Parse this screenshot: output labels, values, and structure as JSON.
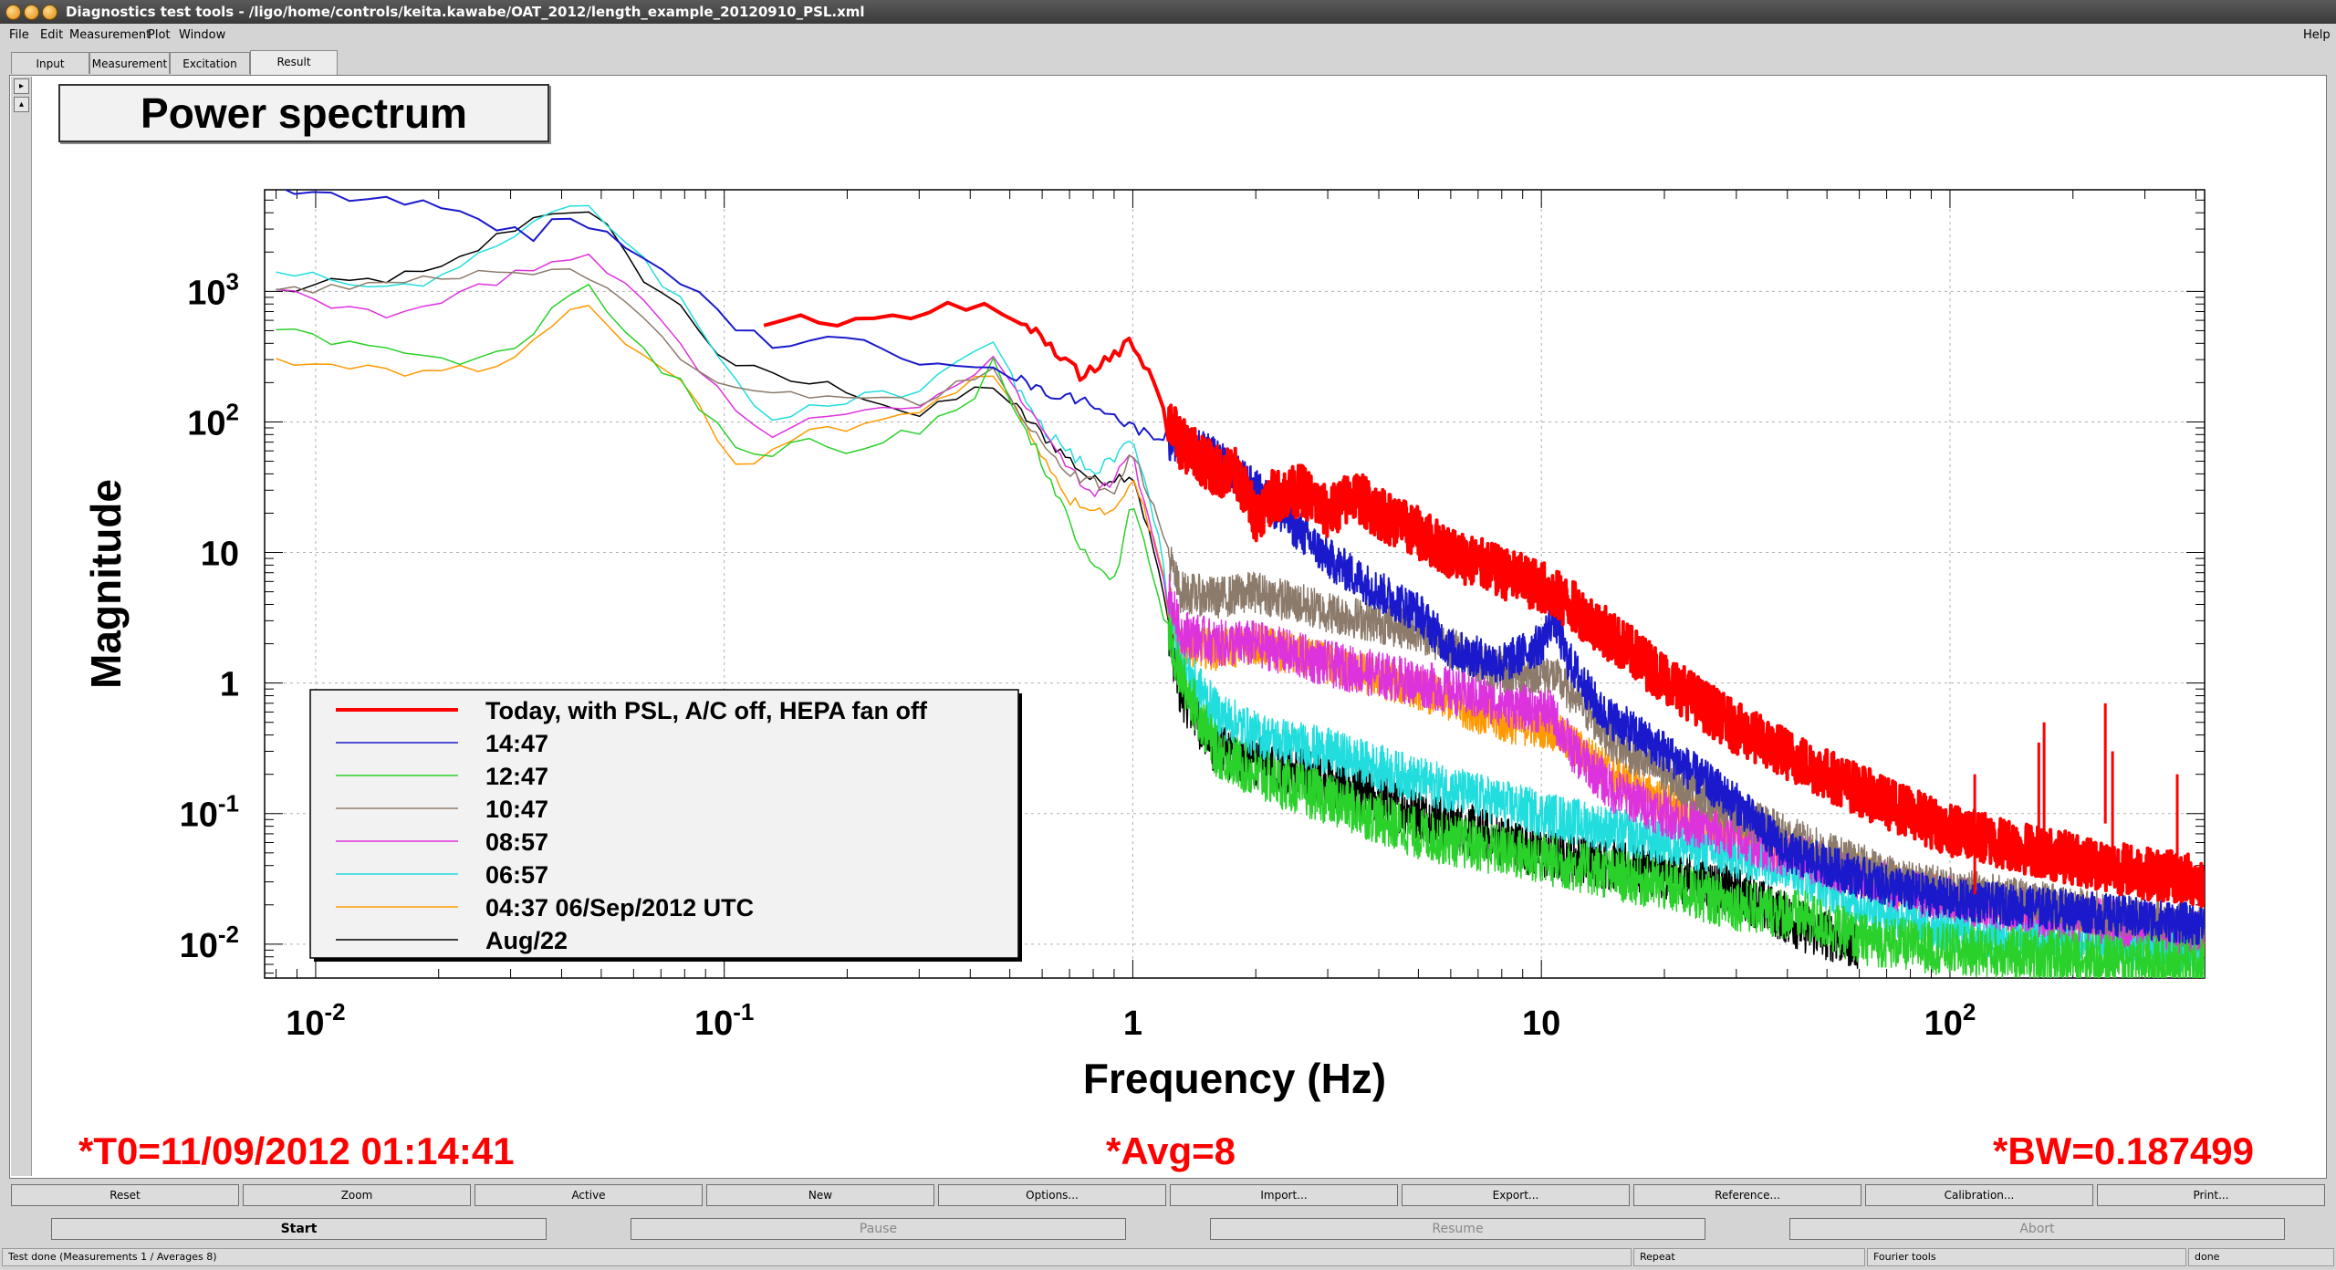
{
  "window": {
    "title": "Diagnostics test tools - /ligo/home/controls/keita.kawabe/OAT_2012/length_example_20120910_PSL.xml",
    "help_label": "Help"
  },
  "menu": {
    "items": [
      "File",
      "Edit",
      "Measurement",
      "Plot",
      "Window"
    ]
  },
  "tabs": [
    "Input",
    "Measurement",
    "Excitation",
    "Result"
  ],
  "active_tab": "Result",
  "plot_title": "Power spectrum",
  "status_overlay": {
    "t0": "*T0=11/09/2012 01:14:41",
    "avg": "*Avg=8",
    "bw": "*BW=0.187499"
  },
  "plot_buttons": [
    "Reset",
    "Zoom",
    "Active",
    "New",
    "Options...",
    "Import...",
    "Export...",
    "Reference...",
    "Calibration...",
    "Print..."
  ],
  "control_buttons": [
    "Start",
    "Pause",
    "Resume",
    "Abort"
  ],
  "statusbar": {
    "message": "Test done (Measurements 1 / Averages 8)",
    "repeat": "Repeat",
    "fourier": "Fourier tools",
    "state": "done"
  },
  "side_buttons": [
    "▸",
    "▴"
  ],
  "chart_data": {
    "type": "line",
    "title": "Power spectrum",
    "xlabel": "Frequency (Hz)",
    "ylabel": "Magnitude",
    "xscale": "log",
    "yscale": "log",
    "xlim": [
      0.0075,
      420
    ],
    "ylim": [
      0.0055,
      6000
    ],
    "grid": true,
    "legend_position": "bottom-left",
    "x_ticks": [
      {
        "value": 0.01,
        "base": "10",
        "exp": "-2"
      },
      {
        "value": 0.1,
        "base": "10",
        "exp": "-1"
      },
      {
        "value": 1,
        "base": "1",
        "exp": ""
      },
      {
        "value": 10,
        "base": "10",
        "exp": ""
      },
      {
        "value": 100,
        "base": "10",
        "exp": "2"
      }
    ],
    "y_ticks": [
      {
        "value": 0.01,
        "base": "10",
        "exp": "-2"
      },
      {
        "value": 0.1,
        "base": "10",
        "exp": "-1"
      },
      {
        "value": 1,
        "base": "1",
        "exp": ""
      },
      {
        "value": 10,
        "base": "10",
        "exp": ""
      },
      {
        "value": 100,
        "base": "10",
        "exp": "2"
      },
      {
        "value": 1000,
        "base": "10",
        "exp": "3"
      }
    ],
    "series": [
      {
        "name": "Today, with PSL, A/C off, HEPA fan off",
        "color": "#ff0000",
        "width": 4,
        "noise": 0.2,
        "points": [
          [
            0.125,
            590
          ],
          [
            0.25,
            610
          ],
          [
            0.38,
            760
          ],
          [
            0.5,
            730
          ],
          [
            0.6,
            420
          ],
          [
            0.75,
            220
          ],
          [
            0.95,
            380
          ],
          [
            1.0,
            400
          ],
          [
            1.1,
            240
          ],
          [
            1.3,
            70
          ],
          [
            1.6,
            42
          ],
          [
            1.8,
            40
          ],
          [
            2.0,
            19
          ],
          [
            2.2,
            27
          ],
          [
            2.6,
            30
          ],
          [
            3.0,
            20
          ],
          [
            3.5,
            28
          ],
          [
            4.0,
            20
          ],
          [
            5.0,
            14
          ],
          [
            6.0,
            10
          ],
          [
            8.0,
            7
          ],
          [
            10.0,
            5.5
          ],
          [
            12,
            3.8
          ],
          [
            15,
            2.2
          ],
          [
            20,
            1.1
          ],
          [
            30,
            0.45
          ],
          [
            50,
            0.2
          ],
          [
            70,
            0.12
          ],
          [
            100,
            0.075
          ],
          [
            150,
            0.055
          ],
          [
            200,
            0.045
          ],
          [
            300,
            0.035
          ],
          [
            420,
            0.03
          ]
        ],
        "spikes": [
          [
            170,
            0.5
          ],
          [
            165,
            0.35
          ],
          [
            240,
            0.7
          ],
          [
            115,
            0.2
          ],
          [
            360,
            0.2
          ],
          [
            250,
            0.3
          ]
        ]
      },
      {
        "name": "14:47",
        "color": "#1a1acc",
        "width": 2,
        "noise": 0.16,
        "points": [
          [
            0.008,
            6000
          ],
          [
            0.02,
            4500
          ],
          [
            0.035,
            2500
          ],
          [
            0.04,
            4000
          ],
          [
            0.05,
            3000
          ],
          [
            0.06,
            1800
          ],
          [
            0.08,
            1200
          ],
          [
            0.1,
            600
          ],
          [
            0.13,
            400
          ],
          [
            0.2,
            420
          ],
          [
            0.3,
            300
          ],
          [
            0.45,
            280
          ],
          [
            0.6,
            170
          ],
          [
            0.8,
            140
          ],
          [
            1.0,
            90
          ],
          [
            1.5,
            60
          ],
          [
            2.0,
            30
          ],
          [
            3.0,
            9
          ],
          [
            4.0,
            5
          ],
          [
            5.0,
            3.5
          ],
          [
            6.0,
            1.8
          ],
          [
            8.0,
            1.4
          ],
          [
            10.0,
            2.0
          ],
          [
            10.7,
            3.3
          ],
          [
            11.5,
            1.6
          ],
          [
            14,
            0.6
          ],
          [
            20,
            0.3
          ],
          [
            30,
            0.12
          ],
          [
            40,
            0.05
          ],
          [
            50,
            0.04
          ],
          [
            70,
            0.028
          ],
          [
            100,
            0.022
          ],
          [
            200,
            0.018
          ],
          [
            420,
            0.014
          ]
        ]
      },
      {
        "name": "12:47",
        "color": "#2ad12a",
        "width": 1.5,
        "noise": 0.2,
        "points": [
          [
            0.008,
            500
          ],
          [
            0.012,
            420
          ],
          [
            0.02,
            280
          ],
          [
            0.03,
            330
          ],
          [
            0.045,
            1300
          ],
          [
            0.06,
            400
          ],
          [
            0.08,
            180
          ],
          [
            0.1,
            80
          ],
          [
            0.12,
            50
          ],
          [
            0.16,
            70
          ],
          [
            0.2,
            60
          ],
          [
            0.3,
            90
          ],
          [
            0.4,
            120
          ],
          [
            0.45,
            300
          ],
          [
            0.5,
            150
          ],
          [
            0.6,
            50
          ],
          [
            0.75,
            10
          ],
          [
            0.9,
            6
          ],
          [
            1.0,
            25
          ],
          [
            1.1,
            8
          ],
          [
            1.3,
            1.2
          ],
          [
            1.6,
            0.3
          ],
          [
            2.0,
            0.2
          ],
          [
            3.0,
            0.13
          ],
          [
            5.0,
            0.07
          ],
          [
            10,
            0.045
          ],
          [
            20,
            0.028
          ],
          [
            30,
            0.02
          ],
          [
            45,
            0.016
          ],
          [
            60,
            0.011
          ],
          [
            100,
            0.009
          ],
          [
            200,
            0.008
          ],
          [
            420,
            0.007
          ]
        ]
      },
      {
        "name": "10:47",
        "color": "#8c7a6b",
        "width": 1.5,
        "noise": 0.16,
        "points": [
          [
            0.008,
            1000
          ],
          [
            0.02,
            1300
          ],
          [
            0.03,
            1500
          ],
          [
            0.045,
            1400
          ],
          [
            0.06,
            700
          ],
          [
            0.08,
            300
          ],
          [
            0.1,
            180
          ],
          [
            0.2,
            160
          ],
          [
            0.3,
            140
          ],
          [
            0.45,
            250
          ],
          [
            0.55,
            100
          ],
          [
            0.7,
            40
          ],
          [
            0.9,
            30
          ],
          [
            1.0,
            60
          ],
          [
            1.15,
            18
          ],
          [
            1.3,
            5
          ],
          [
            1.6,
            4.5
          ],
          [
            2.0,
            5
          ],
          [
            3.0,
            3.5
          ],
          [
            5.0,
            2.5
          ],
          [
            8.0,
            1.2
          ],
          [
            10.5,
            1.2
          ],
          [
            12,
            0.8
          ],
          [
            15,
            0.35
          ],
          [
            20,
            0.2
          ],
          [
            30,
            0.1
          ],
          [
            50,
            0.05
          ],
          [
            80,
            0.03
          ],
          [
            150,
            0.022
          ],
          [
            420,
            0.013
          ]
        ]
      },
      {
        "name": "08:57",
        "color": "#dd33dd",
        "width": 1.5,
        "noise": 0.18,
        "points": [
          [
            0.008,
            1100
          ],
          [
            0.015,
            600
          ],
          [
            0.02,
            800
          ],
          [
            0.03,
            1300
          ],
          [
            0.045,
            2000
          ],
          [
            0.06,
            1000
          ],
          [
            0.08,
            350
          ],
          [
            0.1,
            150
          ],
          [
            0.13,
            80
          ],
          [
            0.2,
            120
          ],
          [
            0.3,
            140
          ],
          [
            0.45,
            300
          ],
          [
            0.6,
            90
          ],
          [
            0.8,
            25
          ],
          [
            1.0,
            55
          ],
          [
            1.15,
            10
          ],
          [
            1.3,
            2.5
          ],
          [
            1.6,
            2.0
          ],
          [
            2.0,
            2.0
          ],
          [
            3.0,
            1.4
          ],
          [
            5.0,
            1.0
          ],
          [
            8.0,
            0.7
          ],
          [
            10.5,
            0.6
          ],
          [
            12,
            0.3
          ],
          [
            15,
            0.15
          ],
          [
            20,
            0.1
          ],
          [
            30,
            0.065
          ],
          [
            50,
            0.04
          ],
          [
            80,
            0.025
          ],
          [
            150,
            0.018
          ],
          [
            420,
            0.012
          ]
        ]
      },
      {
        "name": "06:57",
        "color": "#22dddd",
        "width": 1.5,
        "noise": 0.18,
        "points": [
          [
            0.008,
            1500
          ],
          [
            0.015,
            1000
          ],
          [
            0.02,
            1300
          ],
          [
            0.03,
            2500
          ],
          [
            0.045,
            5000
          ],
          [
            0.06,
            2000
          ],
          [
            0.08,
            800
          ],
          [
            0.1,
            250
          ],
          [
            0.13,
            100
          ],
          [
            0.2,
            150
          ],
          [
            0.3,
            170
          ],
          [
            0.45,
            400
          ],
          [
            0.6,
            90
          ],
          [
            0.8,
            40
          ],
          [
            1.0,
            70
          ],
          [
            1.15,
            15
          ],
          [
            1.3,
            1.5
          ],
          [
            1.6,
            0.6
          ],
          [
            2.0,
            0.4
          ],
          [
            3.0,
            0.3
          ],
          [
            5.0,
            0.18
          ],
          [
            10,
            0.1
          ],
          [
            20,
            0.06
          ],
          [
            40,
            0.04
          ],
          [
            60,
            0.02
          ],
          [
            100,
            0.013
          ],
          [
            200,
            0.01
          ],
          [
            420,
            0.009
          ]
        ]
      },
      {
        "name": "04:37 06/Sep/2012 UTC",
        "color": "#ff9900",
        "width": 1.5,
        "noise": 0.16,
        "points": [
          [
            0.008,
            300
          ],
          [
            0.012,
            260
          ],
          [
            0.02,
            230
          ],
          [
            0.03,
            300
          ],
          [
            0.045,
            800
          ],
          [
            0.06,
            350
          ],
          [
            0.08,
            200
          ],
          [
            0.1,
            60
          ],
          [
            0.11,
            40
          ],
          [
            0.15,
            80
          ],
          [
            0.2,
            90
          ],
          [
            0.3,
            120
          ],
          [
            0.45,
            260
          ],
          [
            0.55,
            90
          ],
          [
            0.7,
            25
          ],
          [
            0.9,
            20
          ],
          [
            1.0,
            40
          ],
          [
            1.15,
            10
          ],
          [
            1.3,
            2.0
          ],
          [
            1.6,
            1.8
          ],
          [
            2.0,
            2.0
          ],
          [
            3.0,
            1.4
          ],
          [
            5.0,
            0.9
          ],
          [
            8.0,
            0.5
          ],
          [
            10.5,
            0.45
          ],
          [
            15,
            0.2
          ],
          [
            20,
            0.12
          ],
          [
            30,
            0.07
          ],
          [
            50,
            0.04
          ],
          [
            100,
            0.022
          ],
          [
            200,
            0.015
          ],
          [
            420,
            0.01
          ]
        ]
      },
      {
        "name": "Aug/22",
        "color": "#000000",
        "width": 1.5,
        "noise": 0.2,
        "points": [
          [
            0.008,
            1000
          ],
          [
            0.02,
            1400
          ],
          [
            0.03,
            3000
          ],
          [
            0.04,
            4500
          ],
          [
            0.05,
            3500
          ],
          [
            0.06,
            1500
          ],
          [
            0.08,
            700
          ],
          [
            0.1,
            300
          ],
          [
            0.13,
            220
          ],
          [
            0.2,
            180
          ],
          [
            0.3,
            110
          ],
          [
            0.45,
            200
          ],
          [
            0.6,
            80
          ],
          [
            0.8,
            35
          ],
          [
            1.0,
            40
          ],
          [
            1.15,
            8
          ],
          [
            1.3,
            0.9
          ],
          [
            1.6,
            0.3
          ],
          [
            2.0,
            0.25
          ],
          [
            3.0,
            0.18
          ],
          [
            5.0,
            0.1
          ],
          [
            10,
            0.05
          ],
          [
            20,
            0.035
          ],
          [
            30,
            0.025
          ],
          [
            45,
            0.013
          ],
          [
            60,
            0.01
          ]
        ]
      }
    ]
  }
}
